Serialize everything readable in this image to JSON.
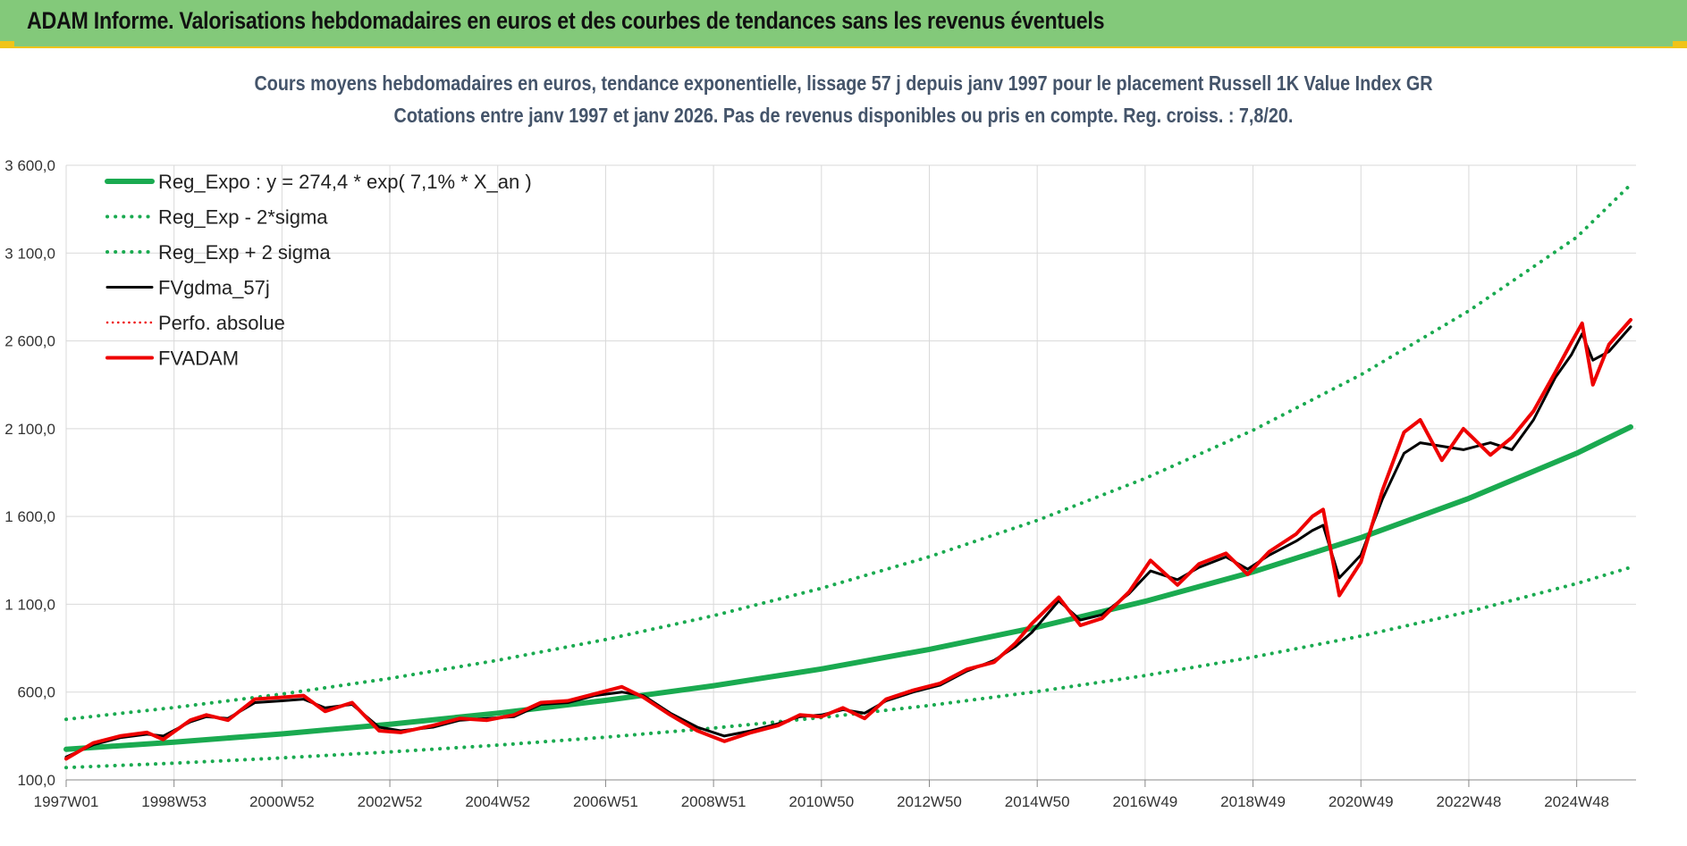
{
  "header": {
    "title": "ADAM Informe. Valorisations hebdomadaires en euros et des courbes de tendances sans les revenus éventuels"
  },
  "colors": {
    "header_bg": "#83c97a",
    "accent_yellow": "#f0c419",
    "reg_green": "#1aaa50",
    "fvadam_red": "#ee0000",
    "fvgdma_black": "#000000"
  },
  "chart_data": {
    "type": "line",
    "title": "Cours moyens hebdomadaires en euros, tendance exponentielle, lissage 57 j depuis janv 1997  pour le placement Russell 1K Value Index GR",
    "subtitle": "Cotations entre janv 1997 et janv 2026. Pas de revenus disponibles ou pris en compte. Reg. croiss. : 7,8/20.",
    "xlabel": "",
    "ylabel": "",
    "ylim": [
      100,
      3600
    ],
    "xlim": [
      1997.0,
      2026.1
    ],
    "y_ticks": [
      "100,0",
      "600,0",
      "1 100,0",
      "1 600,0",
      "2 100,0",
      "2 600,0",
      "3 100,0",
      "3 600,0"
    ],
    "y_tick_values": [
      100,
      600,
      1100,
      1600,
      2100,
      2600,
      3100,
      3600
    ],
    "x_ticks": [
      "1997W01",
      "1998W53",
      "2000W52",
      "2002W52",
      "2004W52",
      "2006W51",
      "2008W51",
      "2010W50",
      "2012W50",
      "2014W50",
      "2016W49",
      "2018W49",
      "2020W49",
      "2022W48",
      "2024W48"
    ],
    "x_tick_years": [
      1997.0,
      1999.0,
      2001.0,
      2003.0,
      2005.0,
      2007.0,
      2009.0,
      2011.0,
      2013.0,
      2015.0,
      2017.0,
      2019.0,
      2021.0,
      2023.0,
      2025.0
    ],
    "grid": true,
    "legend_position": "top-left",
    "legend": [
      {
        "label": "Reg_Expo : y = 274,4 * exp( 7,1% *  X_an )",
        "color": "#1aaa50",
        "style": "solid-thick"
      },
      {
        "label": "Reg_Exp - 2*sigma",
        "color": "#1aaa50",
        "style": "dotted"
      },
      {
        "label": "Reg_Exp + 2 sigma",
        "color": "#1aaa50",
        "style": "dotted"
      },
      {
        "label": "FVgdma_57j",
        "color": "#000000",
        "style": "solid"
      },
      {
        "label": "Perfo. absolue",
        "color": "#ee0000",
        "style": "dotted"
      },
      {
        "label": "FVADAM",
        "color": "#ee0000",
        "style": "solid-thick"
      }
    ],
    "series": [
      {
        "name": "Reg_Expo : y = 274,4 * exp( 7,1% *  X_an )",
        "x": [
          1997,
          1999,
          2001,
          2003,
          2005,
          2007,
          2009,
          2011,
          2013,
          2015,
          2017,
          2019,
          2021,
          2023,
          2025,
          2026
        ],
        "values": [
          274,
          315,
          362,
          417,
          480,
          553,
          636,
          732,
          843,
          970,
          1117,
          1285,
          1479,
          1703,
          1960,
          2110
        ]
      },
      {
        "name": "Reg_Exp - 2*sigma",
        "x": [
          1997,
          1999,
          2001,
          2003,
          2005,
          2007,
          2009,
          2011,
          2013,
          2015,
          2017,
          2019,
          2021,
          2023,
          2025,
          2026
        ],
        "values": [
          170,
          195,
          225,
          259,
          298,
          343,
          395,
          455,
          524,
          603,
          694,
          799,
          919,
          1058,
          1218,
          1310
        ]
      },
      {
        "name": "Reg_Exp + 2 sigma",
        "x": [
          1997,
          1999,
          2001,
          2003,
          2005,
          2007,
          2009,
          2011,
          2013,
          2015,
          2017,
          2019,
          2021,
          2023,
          2025,
          2026
        ],
        "values": [
          445,
          512,
          589,
          678,
          781,
          899,
          1035,
          1191,
          1371,
          1578,
          1817,
          2091,
          2407,
          2771,
          3190,
          3490
        ]
      },
      {
        "name": "FVgdma_57j",
        "x": [
          1997.0,
          1997.5,
          1998.0,
          1998.5,
          1998.8,
          1999.3,
          1999.6,
          2000.0,
          2000.5,
          2001.0,
          2001.4,
          2001.8,
          2002.3,
          2002.8,
          2003.2,
          2003.8,
          2004.3,
          2004.8,
          2005.3,
          2005.8,
          2006.3,
          2006.8,
          2007.3,
          2007.7,
          2008.2,
          2008.7,
          2009.2,
          2009.7,
          2010.2,
          2010.6,
          2011.0,
          2011.4,
          2011.8,
          2012.2,
          2012.7,
          2013.2,
          2013.7,
          2014.2,
          2014.6,
          2014.9,
          2015.4,
          2015.8,
          2016.2,
          2016.7,
          2017.1,
          2017.6,
          2018.0,
          2018.5,
          2018.9,
          2019.3,
          2019.8,
          2020.1,
          2020.3,
          2020.6,
          2021.0,
          2021.4,
          2021.8,
          2022.1,
          2022.5,
          2022.9,
          2023.4,
          2023.8,
          2024.2,
          2024.6,
          2024.9,
          2025.1,
          2025.3,
          2025.6,
          2026.0
        ],
        "values": [
          230,
          300,
          340,
          360,
          350,
          430,
          460,
          450,
          540,
          550,
          560,
          510,
          530,
          400,
          380,
          400,
          440,
          450,
          460,
          530,
          540,
          580,
          600,
          580,
          480,
          400,
          350,
          380,
          420,
          460,
          470,
          500,
          480,
          550,
          600,
          640,
          720,
          780,
          860,
          940,
          1120,
          1010,
          1040,
          1160,
          1290,
          1240,
          1310,
          1370,
          1300,
          1380,
          1460,
          1520,
          1550,
          1250,
          1380,
          1700,
          1960,
          2020,
          2000,
          1980,
          2020,
          1980,
          2150,
          2390,
          2520,
          2640,
          2490,
          2540,
          2680
        ]
      },
      {
        "name": "Perfo. absolue",
        "x": [
          1997.0,
          1997.5,
          1998.0,
          1998.5,
          1998.8,
          1999.3,
          1999.6,
          2000.0,
          2000.5,
          2001.0,
          2001.4,
          2001.8,
          2002.3,
          2002.8,
          2003.2,
          2003.8,
          2004.3,
          2004.8,
          2005.3,
          2005.8,
          2006.3,
          2006.8,
          2007.3,
          2007.7,
          2008.2,
          2008.7,
          2009.2,
          2009.7,
          2010.2,
          2010.6,
          2011.0,
          2011.4,
          2011.8,
          2012.2,
          2012.7,
          2013.2,
          2013.7,
          2014.2,
          2014.6,
          2014.9,
          2015.4,
          2015.8,
          2016.2,
          2016.7,
          2017.1,
          2017.6,
          2018.0,
          2018.5,
          2018.9,
          2019.3,
          2019.8,
          2020.1,
          2020.3,
          2020.6,
          2021.0,
          2021.4,
          2021.8,
          2022.1,
          2022.5,
          2022.9,
          2023.4,
          2023.8,
          2024.2,
          2024.6,
          2024.9,
          2025.1,
          2025.3,
          2025.6,
          2026.0
        ],
        "values": [
          220,
          310,
          350,
          370,
          330,
          440,
          470,
          440,
          560,
          570,
          580,
          490,
          540,
          380,
          370,
          410,
          450,
          440,
          470,
          540,
          550,
          590,
          630,
          570,
          470,
          380,
          320,
          370,
          410,
          470,
          460,
          510,
          450,
          560,
          610,
          650,
          730,
          770,
          880,
          990,
          1140,
          980,
          1020,
          1170,
          1350,
          1210,
          1330,
          1390,
          1270,
          1400,
          1500,
          1600,
          1640,
          1150,
          1340,
          1750,
          2080,
          2150,
          1920,
          2100,
          1950,
          2050,
          2200,
          2420,
          2590,
          2700,
          2350,
          2580,
          2720
        ]
      },
      {
        "name": "FVADAM",
        "x": [
          1997.0,
          1997.5,
          1998.0,
          1998.5,
          1998.8,
          1999.3,
          1999.6,
          2000.0,
          2000.5,
          2001.0,
          2001.4,
          2001.8,
          2002.3,
          2002.8,
          2003.2,
          2003.8,
          2004.3,
          2004.8,
          2005.3,
          2005.8,
          2006.3,
          2006.8,
          2007.3,
          2007.7,
          2008.2,
          2008.7,
          2009.2,
          2009.7,
          2010.2,
          2010.6,
          2011.0,
          2011.4,
          2011.8,
          2012.2,
          2012.7,
          2013.2,
          2013.7,
          2014.2,
          2014.6,
          2014.9,
          2015.4,
          2015.8,
          2016.2,
          2016.7,
          2017.1,
          2017.6,
          2018.0,
          2018.5,
          2018.9,
          2019.3,
          2019.8,
          2020.1,
          2020.3,
          2020.6,
          2021.0,
          2021.4,
          2021.8,
          2022.1,
          2022.5,
          2022.9,
          2023.4,
          2023.8,
          2024.2,
          2024.6,
          2024.9,
          2025.1,
          2025.3,
          2025.6,
          2026.0
        ],
        "values": [
          220,
          310,
          350,
          370,
          330,
          440,
          470,
          440,
          560,
          570,
          580,
          490,
          540,
          380,
          370,
          410,
          450,
          440,
          470,
          540,
          550,
          590,
          630,
          570,
          470,
          380,
          320,
          370,
          410,
          470,
          460,
          510,
          450,
          560,
          610,
          650,
          730,
          770,
          880,
          990,
          1140,
          980,
          1020,
          1170,
          1350,
          1210,
          1330,
          1390,
          1270,
          1400,
          1500,
          1600,
          1640,
          1150,
          1340,
          1750,
          2080,
          2150,
          1920,
          2100,
          1950,
          2050,
          2200,
          2420,
          2590,
          2700,
          2350,
          2580,
          2720
        ]
      }
    ]
  }
}
